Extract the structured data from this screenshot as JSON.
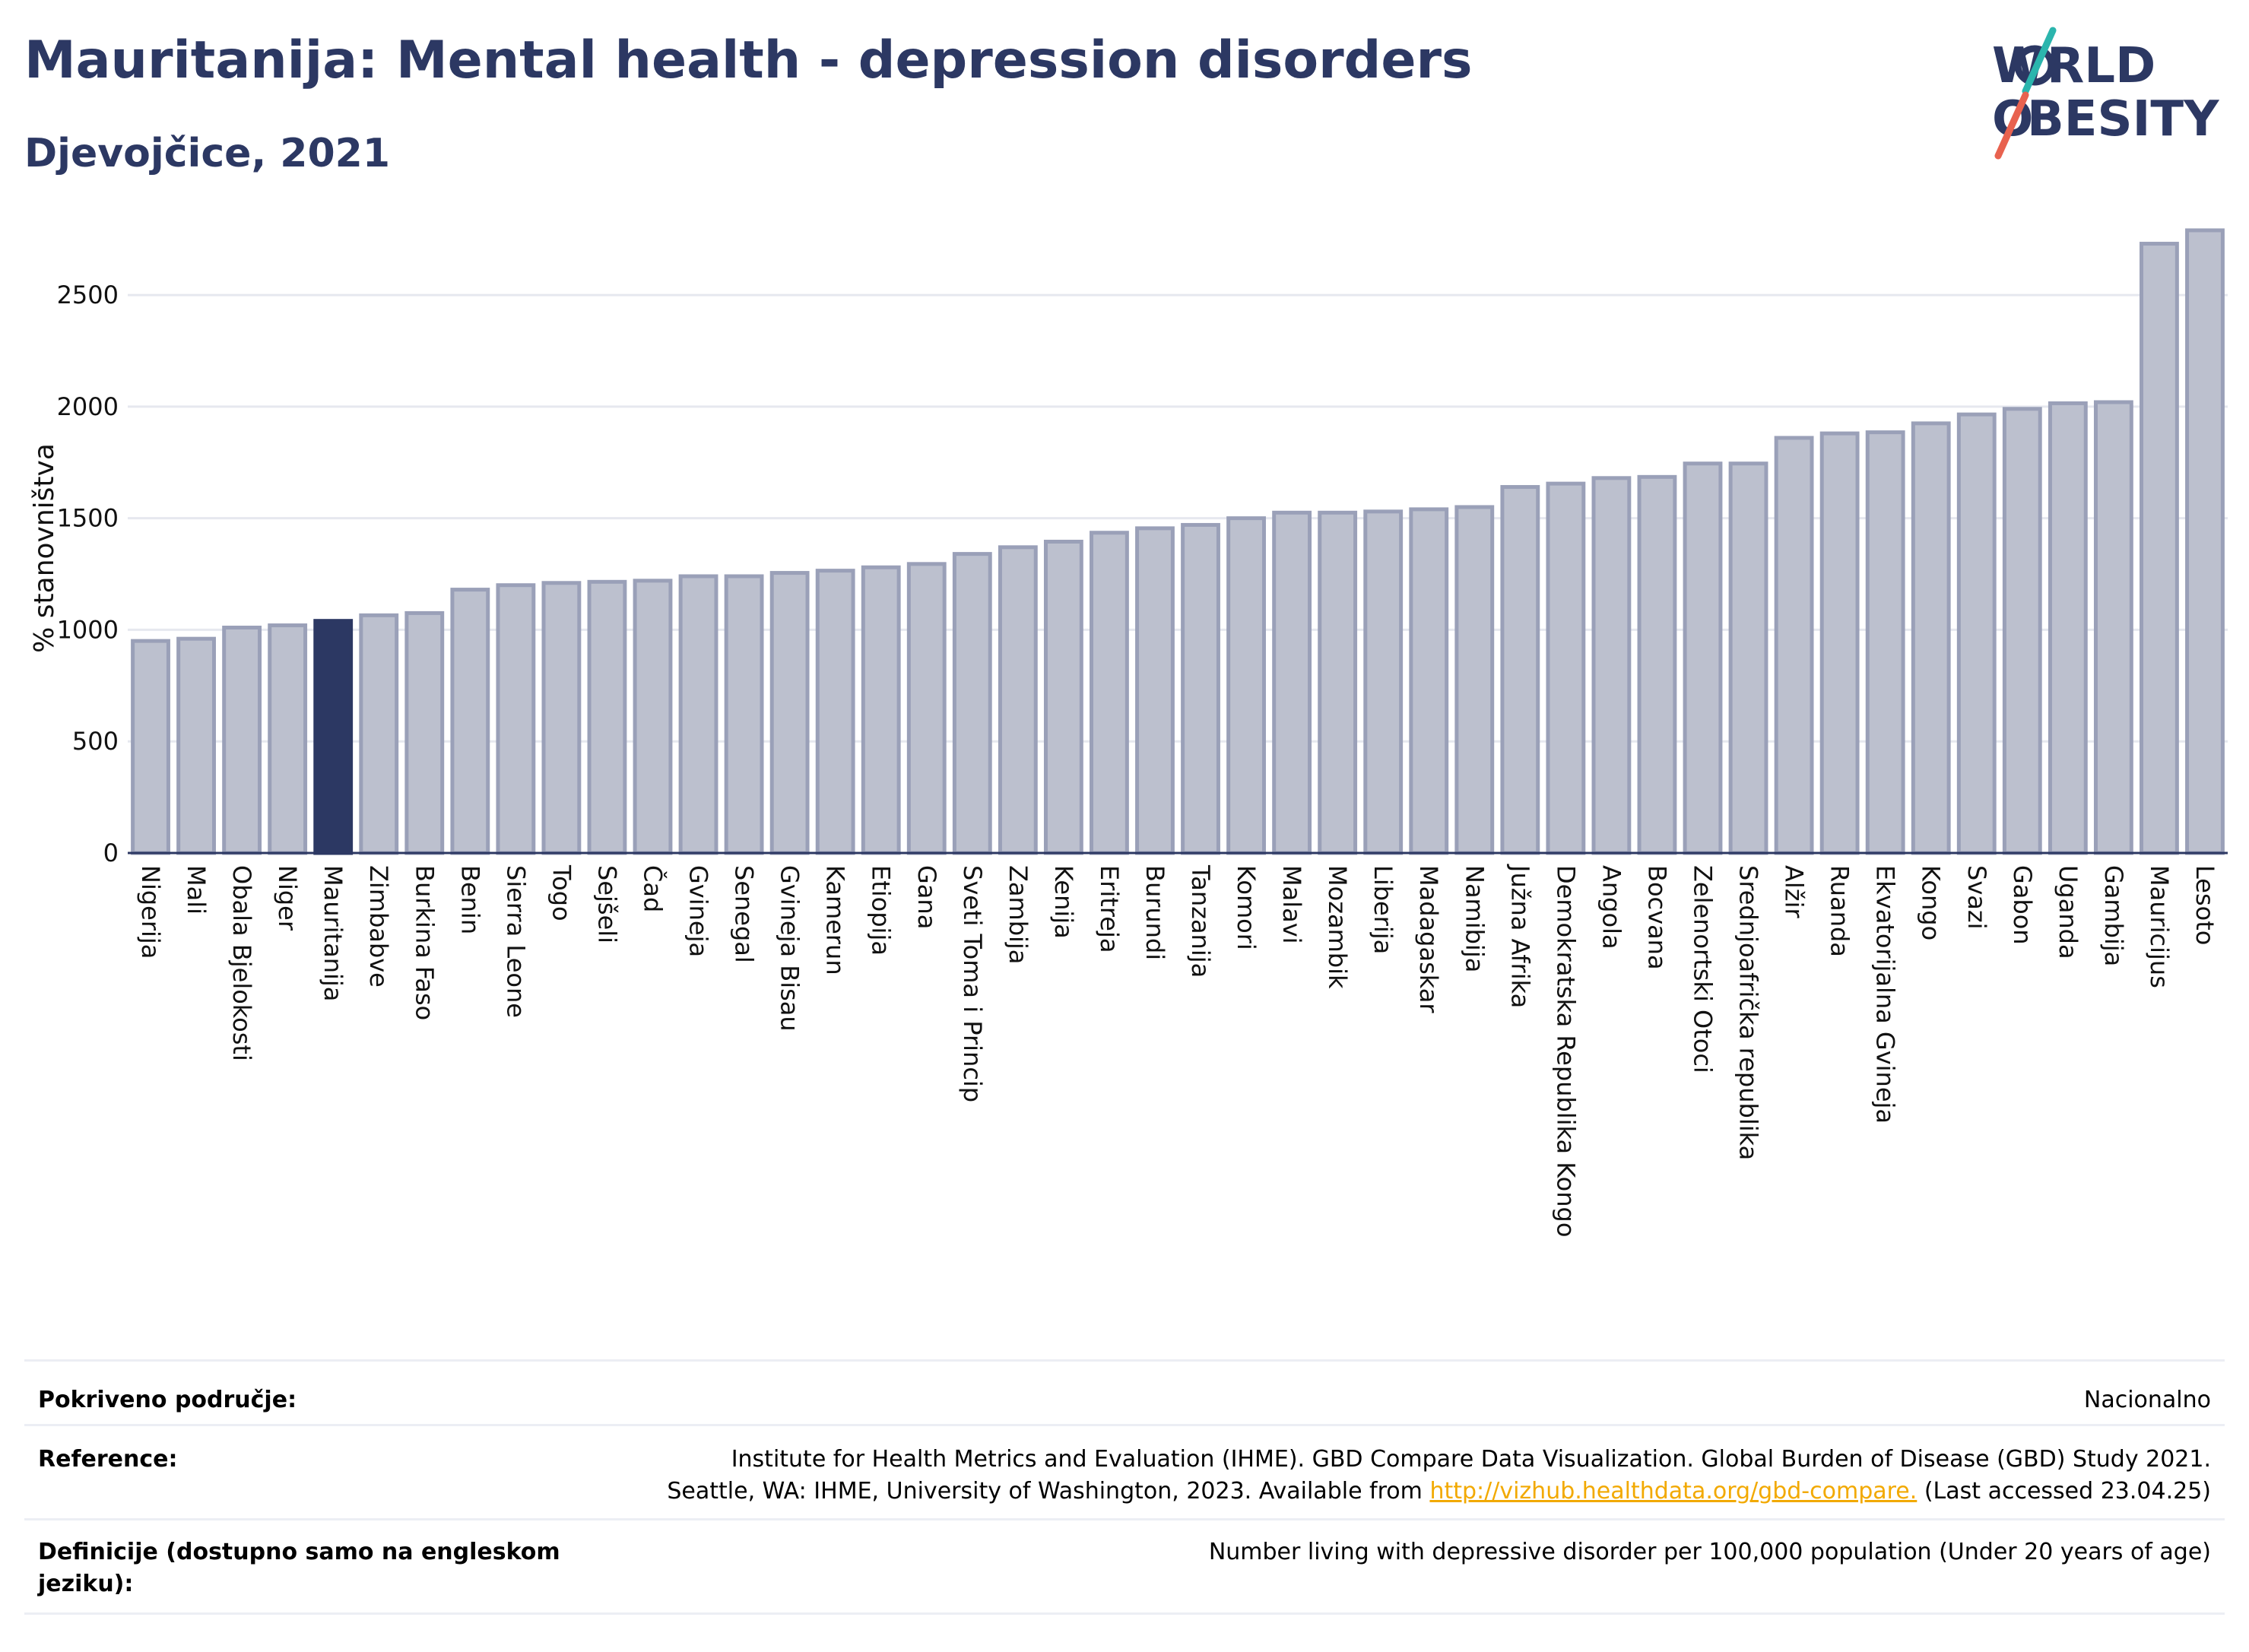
{
  "header": {
    "title": "Mauritanija: Mental health - depression disorders",
    "subtitle": "Djevojčice, 2021"
  },
  "logo": {
    "line1": "WORLD",
    "line2": "OBESITY"
  },
  "chart_data": {
    "type": "bar",
    "ylabel": "% stanovništva",
    "ylim": [
      0,
      2800
    ],
    "yticks": [
      0,
      500,
      1000,
      1500,
      2000,
      2500
    ],
    "grid": true,
    "highlight": "Mauritanija",
    "colors": {
      "bar": "#bcc0ce",
      "bar_edge": "#9aa0b8",
      "highlight": "#2c3863",
      "grid": "#e6e8ef"
    },
    "categories": [
      "Nigerija",
      "Mali",
      "Obala Bjelokosti",
      "Niger",
      "Mauritanija",
      "Zimbabve",
      "Burkina Faso",
      "Benin",
      "Sierra Leone",
      "Togo",
      "Sejšeli",
      "Čad",
      "Gvineja",
      "Senegal",
      "Gvineja Bisau",
      "Kamerun",
      "Etiopija",
      "Gana",
      "Sveti Toma i Princip",
      "Zambija",
      "Kenija",
      "Eritreja",
      "Burundi",
      "Tanzanija",
      "Komori",
      "Malavi",
      "Mozambik",
      "Liberija",
      "Madagaskar",
      "Namibija",
      "Južna Afrika",
      "Demokratska Republika Kongo",
      "Angola",
      "Bocvana",
      "Zelenortski Otoci",
      "Srednjoafrička republika",
      "Alžir",
      "Ruanda",
      "Ekvatorijalna Gvineja",
      "Kongo",
      "Svazi",
      "Gabon",
      "Uganda",
      "Gambija",
      "Mauricijus",
      "Lesoto"
    ],
    "values": [
      950,
      960,
      1010,
      1020,
      1040,
      1065,
      1075,
      1180,
      1200,
      1210,
      1215,
      1220,
      1240,
      1240,
      1255,
      1265,
      1280,
      1295,
      1340,
      1370,
      1395,
      1435,
      1455,
      1470,
      1500,
      1525,
      1525,
      1530,
      1540,
      1550,
      1640,
      1655,
      1680,
      1685,
      1745,
      1745,
      1860,
      1880,
      1885,
      1925,
      1965,
      1990,
      2015,
      2020,
      2730,
      2790
    ]
  },
  "meta": {
    "coverage_label": "Pokriveno područje:",
    "coverage_value": "Nacionalno",
    "reference_label": "Reference:",
    "reference_line1": "Institute for Health Metrics and Evaluation (IHME). GBD Compare Data Visualization. Global Burden of Disease (GBD) Study 2021.",
    "reference_line2_pre": "Seattle, WA: IHME, University of Washington, 2023. Available from",
    "reference_link": "http://vizhub.healthdata.org/gbd-compare.",
    "reference_line2_post": "(Last accessed 23.04.25)",
    "definition_label": "Definicije (dostupno samo na engleskom jeziku):",
    "definition_value": "Number living with depressive disorder per 100,000 population (Under 20 years of age)"
  }
}
